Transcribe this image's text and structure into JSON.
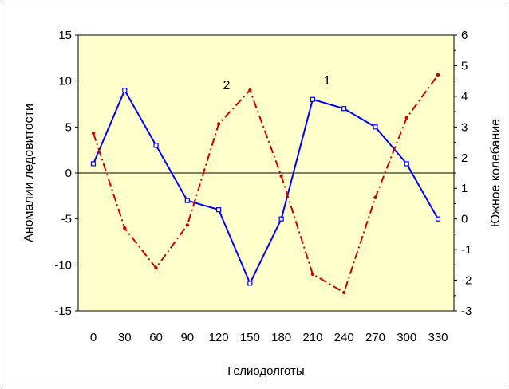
{
  "chart_data": {
    "type": "line",
    "x": [
      0,
      30,
      60,
      90,
      120,
      150,
      180,
      210,
      240,
      270,
      300,
      330
    ],
    "xlabel": "Гелиодолготы",
    "ylabel_left": "Аномалии ледовитости",
    "ylabel_right": "Южное колебание",
    "ylim_left": [
      -15,
      15
    ],
    "yticks_left": [
      -15,
      -10,
      -5,
      0,
      5,
      10,
      15
    ],
    "ylim_right": [
      -3,
      6
    ],
    "yticks_right": [
      -3,
      -2,
      -1,
      0,
      1,
      2,
      3,
      4,
      5,
      6
    ],
    "plot_background": "#ffffcc",
    "grid": "horizontal zero line only",
    "series": [
      {
        "label": "1",
        "axis": "left",
        "color": "#0000ff",
        "style": "solid",
        "values": [
          1,
          9,
          3,
          -3,
          -4,
          -12,
          -5,
          8,
          7,
          5,
          1,
          -5
        ]
      },
      {
        "label": "2",
        "axis": "right",
        "color": "#cc0000",
        "style": "dash-dot",
        "values": [
          2.8,
          -0.3,
          -1.6,
          -0.2,
          3.1,
          4.2,
          1.4,
          -1.8,
          -2.4,
          0.7,
          3.3,
          4.7
        ]
      }
    ]
  }
}
